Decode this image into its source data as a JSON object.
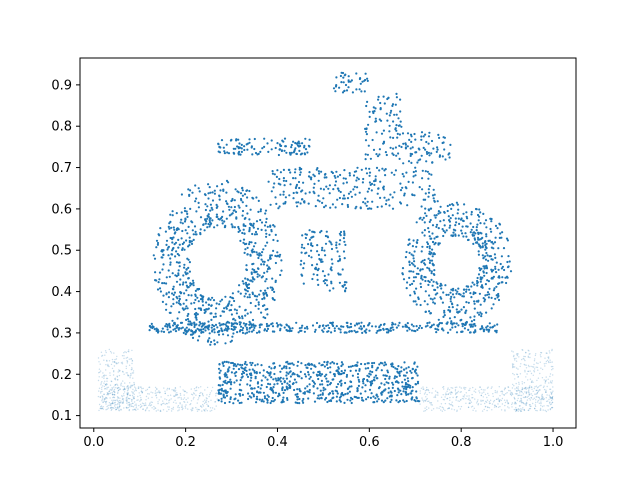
{
  "chart_data": {
    "type": "scatter",
    "title": "",
    "xlabel": "",
    "ylabel": "",
    "xlim": [
      -0.03,
      1.05
    ],
    "ylim": [
      0.07,
      0.965
    ],
    "x_ticks": [
      0.0,
      0.2,
      0.4,
      0.6,
      0.8,
      1.0
    ],
    "x_tick_labels": [
      "0.0",
      "0.2",
      "0.4",
      "0.6",
      "0.8",
      "1.0"
    ],
    "y_ticks": [
      0.1,
      0.2,
      0.3,
      0.4,
      0.5,
      0.6,
      0.7,
      0.8,
      0.9
    ],
    "y_tick_labels": [
      "0.1",
      "0.2",
      "0.3",
      "0.4",
      "0.5",
      "0.6",
      "0.7",
      "0.8",
      "0.9"
    ],
    "grid": false,
    "legend": "none",
    "series": [
      {
        "color": "#1f77b4",
        "marker_opacity": 1.0,
        "shapes": [
          {
            "kind": "ring",
            "center": [
              0.27,
              0.47
            ],
            "radius": [
              0.14,
              0.2
            ],
            "thickness": 0.08,
            "count": 750
          },
          {
            "kind": "ring",
            "center": [
              0.79,
              0.47
            ],
            "radius": [
              0.12,
              0.15
            ],
            "thickness": 0.07,
            "count": 520
          },
          {
            "kind": "rect",
            "x": [
              0.45,
              0.55
            ],
            "y": [
              0.4,
              0.55
            ],
            "count": 120
          },
          {
            "kind": "rect",
            "x": [
              0.38,
              0.75
            ],
            "y": [
              0.6,
              0.7
            ],
            "count": 260
          },
          {
            "kind": "rect",
            "x": [
              0.12,
              0.88
            ],
            "y": [
              0.3,
              0.325
            ],
            "count": 380
          },
          {
            "kind": "rect",
            "x": [
              0.27,
              0.47
            ],
            "y": [
              0.73,
              0.77
            ],
            "count": 110
          },
          {
            "kind": "rect",
            "x": [
              0.67,
              0.78
            ],
            "y": [
              0.71,
              0.79
            ],
            "count": 70
          },
          {
            "kind": "rect",
            "x": [
              0.52,
              0.6
            ],
            "y": [
              0.88,
              0.93
            ],
            "count": 40
          },
          {
            "kind": "rect",
            "x": [
              0.59,
              0.67
            ],
            "y": [
              0.72,
              0.88
            ],
            "count": 90
          },
          {
            "kind": "rect",
            "x": [
              0.27,
              0.71
            ],
            "y": [
              0.13,
              0.23
            ],
            "count": 700
          }
        ]
      },
      {
        "color": "#1f77b4",
        "marker_opacity": 0.25,
        "shapes": [
          {
            "kind": "rect",
            "x": [
              0.01,
              0.27
            ],
            "y": [
              0.11,
              0.17
            ],
            "count": 400
          },
          {
            "kind": "rect",
            "x": [
              0.01,
              0.09
            ],
            "y": [
              0.11,
              0.26
            ],
            "count": 260
          },
          {
            "kind": "rect",
            "x": [
              0.71,
              1.0
            ],
            "y": [
              0.11,
              0.17
            ],
            "count": 400
          },
          {
            "kind": "rect",
            "x": [
              0.91,
              1.0
            ],
            "y": [
              0.11,
              0.26
            ],
            "count": 260
          }
        ]
      }
    ]
  }
}
